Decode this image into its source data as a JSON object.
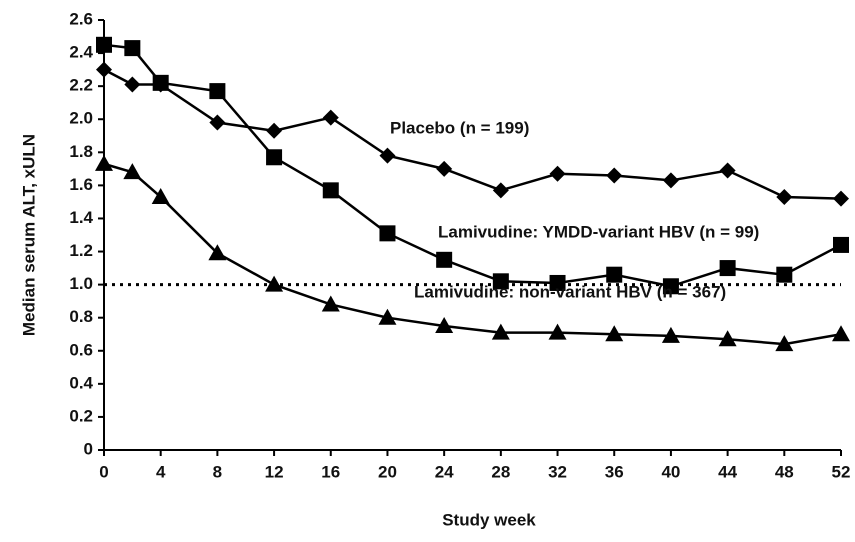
{
  "chart_data": {
    "type": "line",
    "x_label": "Study week",
    "y_label": "Median serum ALT, xULN",
    "x": [
      0,
      2,
      4,
      8,
      12,
      16,
      20,
      24,
      28,
      32,
      36,
      40,
      44,
      48,
      52
    ],
    "xlim": [
      0,
      52
    ],
    "xticks": [
      0,
      4,
      8,
      12,
      16,
      20,
      24,
      28,
      32,
      36,
      40,
      44,
      48,
      52
    ],
    "ylim": [
      0,
      2.6
    ],
    "yticks": [
      0,
      0.2,
      0.4,
      0.6,
      0.8,
      {
        "value": 1,
        "label": "1.0"
      },
      1.2,
      1.4,
      1.6,
      1.8,
      {
        "value": 2,
        "label": "2.0"
      },
      2.2,
      2.4,
      2.6
    ],
    "reference_line": 1,
    "series": [
      {
        "name": "Placebo (n = 199)",
        "color": "#000000",
        "marker": "diamond",
        "values": [
          2.3,
          2.21,
          2.21,
          1.98,
          1.93,
          2.01,
          1.78,
          1.7,
          1.57,
          1.67,
          1.66,
          1.63,
          1.69,
          1.53,
          1.52
        ]
      },
      {
        "name": "Lamivudine: YMDD-variant HBV (n = 99)",
        "color": "#000000",
        "marker": "square",
        "values": [
          2.45,
          2.43,
          2.22,
          2.17,
          1.77,
          1.57,
          1.31,
          1.15,
          1.02,
          1.01,
          1.06,
          0.99,
          1.1,
          1.06,
          1.24
        ]
      },
      {
        "name": "Lamivudine: non-variant HBV (n = 367)",
        "color": "#000000",
        "marker": "triangle",
        "values": [
          1.73,
          1.68,
          1.53,
          1.19,
          1.0,
          0.88,
          0.8,
          0.75,
          0.71,
          0.71,
          0.7,
          0.69,
          0.67,
          0.64,
          0.7
        ]
      }
    ]
  }
}
